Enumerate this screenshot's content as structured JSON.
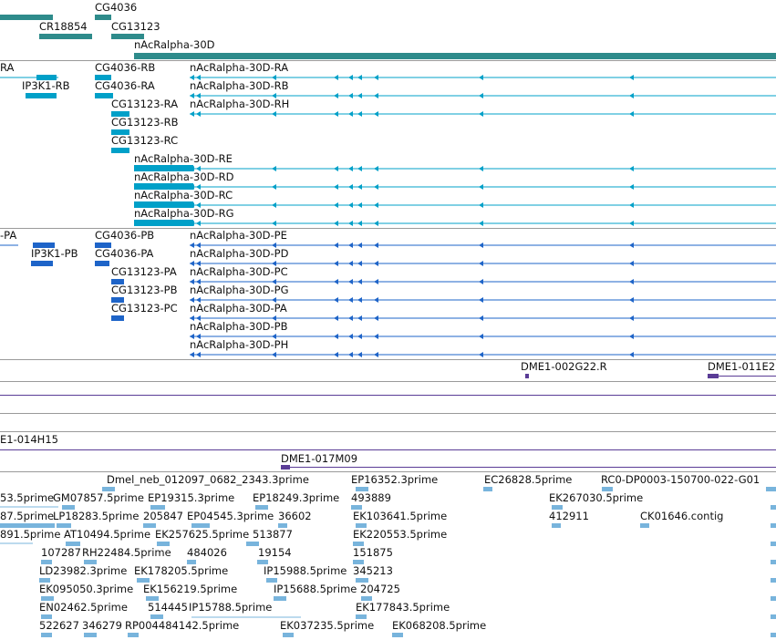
{
  "colors": {
    "gene": "#2e8b8b",
    "mrna_cyan": "#00a0c8",
    "mrna_blue": "#1e64c8",
    "clone_purple": "#5a3c96",
    "est": "#78b4dc",
    "separator": "#9a9a9a"
  },
  "tracks": {
    "genes": {
      "labels": [
        {
          "id": "g1",
          "text": "CG4036"
        },
        {
          "id": "g2",
          "text": "CR18854"
        },
        {
          "id": "g3",
          "text": "CG13123"
        },
        {
          "id": "g4",
          "text": "nAcRalpha-30D"
        }
      ]
    },
    "mrna_ra": {
      "labels": [
        {
          "id": "r1",
          "text": "RA"
        },
        {
          "id": "r2",
          "text": "CG4036-RB"
        },
        {
          "id": "r3",
          "text": "nAcRalpha-30D-RA"
        },
        {
          "id": "r4",
          "text": "IP3K1-RB"
        },
        {
          "id": "r5",
          "text": "CG4036-RA"
        },
        {
          "id": "r6",
          "text": "nAcRalpha-30D-RB"
        },
        {
          "id": "r7",
          "text": "CG13123-RA"
        },
        {
          "id": "r8",
          "text": "nAcRalpha-30D-RH"
        },
        {
          "id": "r9",
          "text": "CG13123-RB"
        },
        {
          "id": "r10",
          "text": "CG13123-RC"
        },
        {
          "id": "r11",
          "text": "nAcRalpha-30D-RE"
        },
        {
          "id": "r12",
          "text": "nAcRalpha-30D-RD"
        },
        {
          "id": "r13",
          "text": "nAcRalpha-30D-RC"
        },
        {
          "id": "r14",
          "text": "nAcRalpha-30D-RG"
        }
      ]
    },
    "mrna_pa": {
      "labels": [
        {
          "id": "p1",
          "text": "-PA"
        },
        {
          "id": "p2",
          "text": "CG4036-PB"
        },
        {
          "id": "p3",
          "text": "nAcRalpha-30D-PE"
        },
        {
          "id": "p4",
          "text": "IP3K1-PB"
        },
        {
          "id": "p5",
          "text": "CG4036-PA"
        },
        {
          "id": "p6",
          "text": "nAcRalpha-30D-PD"
        },
        {
          "id": "p7",
          "text": "CG13123-PA"
        },
        {
          "id": "p8",
          "text": "nAcRalpha-30D-PC"
        },
        {
          "id": "p9",
          "text": "CG13123-PB"
        },
        {
          "id": "p10",
          "text": "nAcRalpha-30D-PG"
        },
        {
          "id": "p11",
          "text": "CG13123-PC"
        },
        {
          "id": "p12",
          "text": "nAcRalpha-30D-PA"
        },
        {
          "id": "p13",
          "text": "nAcRalpha-30D-PB"
        },
        {
          "id": "p14",
          "text": "nAcRalpha-30D-PH"
        }
      ]
    },
    "clones": {
      "labels": [
        {
          "id": "c1",
          "text": "DME1-002G22.R"
        },
        {
          "id": "c2",
          "text": "DME1-011E2"
        },
        {
          "id": "c3",
          "text": "E1-014H15"
        },
        {
          "id": "c4",
          "text": "DME1-017M09"
        }
      ]
    },
    "ests": {
      "labels": [
        {
          "id": "e1",
          "text": "Dmel_neb_012097_0682_2343.3prime"
        },
        {
          "id": "e2",
          "text": "EP16352.3prime"
        },
        {
          "id": "e3",
          "text": "EC26828.5prime"
        },
        {
          "id": "e4",
          "text": "RC0-DP0003-150700-022-G01"
        },
        {
          "id": "e5",
          "text": "53.5prime"
        },
        {
          "id": "e6",
          "text": "GM07857.5prime"
        },
        {
          "id": "e7",
          "text": "EP19315.3prime"
        },
        {
          "id": "e8",
          "text": "EP18249.3prime"
        },
        {
          "id": "e9",
          "text": "493889"
        },
        {
          "id": "e10",
          "text": "EK267030.5prime"
        },
        {
          "id": "e11",
          "text": "87.5prime"
        },
        {
          "id": "e12",
          "text": "LP18283.5prime"
        },
        {
          "id": "e13",
          "text": "205847"
        },
        {
          "id": "e14",
          "text": "EP04545.3prime"
        },
        {
          "id": "e15",
          "text": "36602"
        },
        {
          "id": "e16",
          "text": "EK103641.5prime"
        },
        {
          "id": "e17",
          "text": "412911"
        },
        {
          "id": "e18",
          "text": "CK01646.contig"
        },
        {
          "id": "e19",
          "text": "891.5prime"
        },
        {
          "id": "e20",
          "text": "AT10494.5prime"
        },
        {
          "id": "e21",
          "text": "EK257625.5prime"
        },
        {
          "id": "e22",
          "text": "513877"
        },
        {
          "id": "e23",
          "text": "EK220553.5prime"
        },
        {
          "id": "e24",
          "text": "107287"
        },
        {
          "id": "e25",
          "text": "RH22484.5prime"
        },
        {
          "id": "e26",
          "text": "484026"
        },
        {
          "id": "e27",
          "text": "19154"
        },
        {
          "id": "e28",
          "text": "151875"
        },
        {
          "id": "e29",
          "text": "LD23982.3prime"
        },
        {
          "id": "e30",
          "text": "EK178205.5prime"
        },
        {
          "id": "e31",
          "text": "IP15988.5prime"
        },
        {
          "id": "e32",
          "text": "345213"
        },
        {
          "id": "e33",
          "text": "EK095050.3prime"
        },
        {
          "id": "e34",
          "text": "EK156219.5prime"
        },
        {
          "id": "e35",
          "text": "IP15688.5prime"
        },
        {
          "id": "e36",
          "text": "204725"
        },
        {
          "id": "e37",
          "text": "EN02462.5prime"
        },
        {
          "id": "e38",
          "text": "514445"
        },
        {
          "id": "e39",
          "text": "IP15788.5prime"
        },
        {
          "id": "e40",
          "text": "EK177843.5prime"
        },
        {
          "id": "e41",
          "text": "522627"
        },
        {
          "id": "e42",
          "text": "346279"
        },
        {
          "id": "e43",
          "text": "RP004484142.5prime"
        },
        {
          "id": "e44",
          "text": "EK037235.5prime"
        },
        {
          "id": "e45",
          "text": "EK068208.5prime"
        }
      ]
    }
  }
}
